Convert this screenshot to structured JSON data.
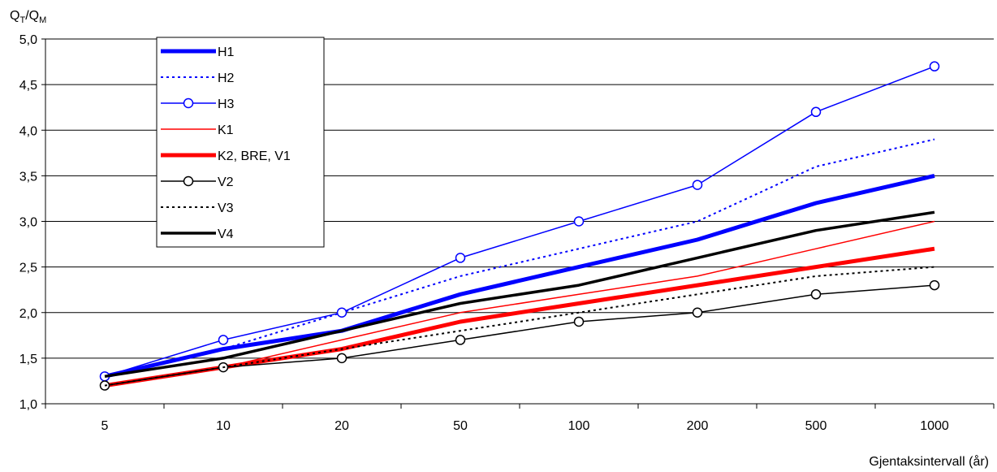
{
  "chart_data": {
    "type": "line",
    "ylabel": {
      "main": "Q",
      "sub1": "T",
      "sep": "/Q",
      "sub2": "M"
    },
    "xlabel": "Gjentaksintervall (år)",
    "categories": [
      "5",
      "10",
      "20",
      "50",
      "100",
      "200",
      "500",
      "1000"
    ],
    "ylim": [
      1.0,
      5.0
    ],
    "yticks": [
      "1,0",
      "1,5",
      "2,0",
      "2,5",
      "3,0",
      "3,5",
      "4,0",
      "4,5",
      "5,0"
    ],
    "grid": "horizontal",
    "legend_position": "top-left",
    "series": [
      {
        "name": "H1",
        "color": "#0000ff",
        "style": "thick",
        "marker": "none",
        "values": [
          1.3,
          1.6,
          1.8,
          2.2,
          2.5,
          2.8,
          3.2,
          3.5
        ]
      },
      {
        "name": "H2",
        "color": "#0000ff",
        "style": "dotted",
        "marker": "none",
        "values": [
          1.3,
          1.6,
          2.0,
          2.4,
          2.7,
          3.0,
          3.6,
          3.9
        ]
      },
      {
        "name": "H3",
        "color": "#0000ff",
        "style": "thin",
        "marker": "circle",
        "values": [
          1.3,
          1.7,
          2.0,
          2.6,
          3.0,
          3.4,
          4.2,
          4.7
        ]
      },
      {
        "name": "K1",
        "color": "#ff0000",
        "style": "thin",
        "marker": "none",
        "values": [
          1.2,
          1.4,
          1.7,
          2.0,
          2.2,
          2.4,
          2.7,
          3.0
        ]
      },
      {
        "name": "K2, BRE, V1",
        "color": "#ff0000",
        "style": "thick",
        "marker": "none",
        "values": [
          1.2,
          1.4,
          1.6,
          1.9,
          2.1,
          2.3,
          2.5,
          2.7
        ]
      },
      {
        "name": "V2",
        "color": "#000000",
        "style": "thin",
        "marker": "circle",
        "values": [
          1.2,
          1.4,
          1.5,
          1.7,
          1.9,
          2.0,
          2.2,
          2.3
        ]
      },
      {
        "name": "V3",
        "color": "#000000",
        "style": "dotted",
        "marker": "none",
        "values": [
          1.2,
          1.4,
          1.6,
          1.8,
          2.0,
          2.2,
          2.4,
          2.5
        ]
      },
      {
        "name": "V4",
        "color": "#000000",
        "style": "medium",
        "marker": "none",
        "values": [
          1.3,
          1.5,
          1.8,
          2.1,
          2.3,
          2.6,
          2.9,
          3.1
        ]
      }
    ]
  }
}
